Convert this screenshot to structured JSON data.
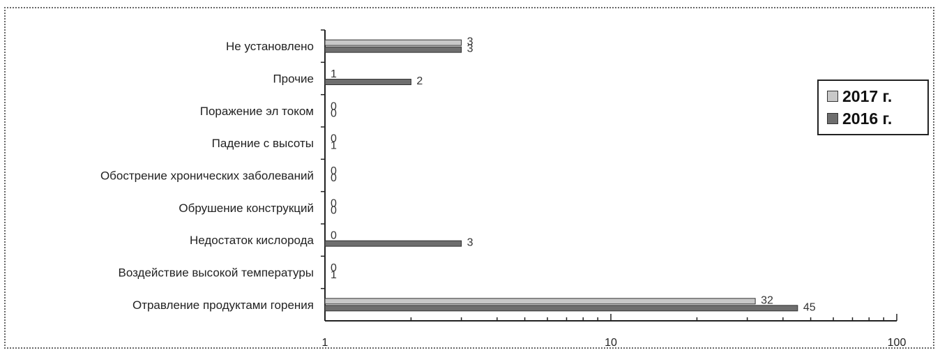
{
  "chart_data": {
    "type": "bar",
    "orientation": "horizontal",
    "x_scale": "log",
    "xlim": [
      1,
      100
    ],
    "x_ticks": [
      "1",
      "10",
      "100"
    ],
    "categories": [
      "Не установлено",
      "Прочие",
      "Поражение эл током",
      "Падение с высоты",
      "Обострение хронических заболеваний",
      "Обрушение конструкций",
      "Недостаток кислорода",
      "Воздействие высокой температуры",
      "Отравление продуктами горения"
    ],
    "series": [
      {
        "name": "2017 г.",
        "color": "#c8c8c8",
        "values": [
          3,
          1,
          0,
          0,
          0,
          0,
          0,
          0,
          32
        ]
      },
      {
        "name": "2016 г.",
        "color": "#6e6e6e",
        "values": [
          3,
          2,
          0,
          1,
          0,
          0,
          3,
          1,
          45
        ]
      }
    ],
    "legend_position": "right",
    "grid": false
  }
}
